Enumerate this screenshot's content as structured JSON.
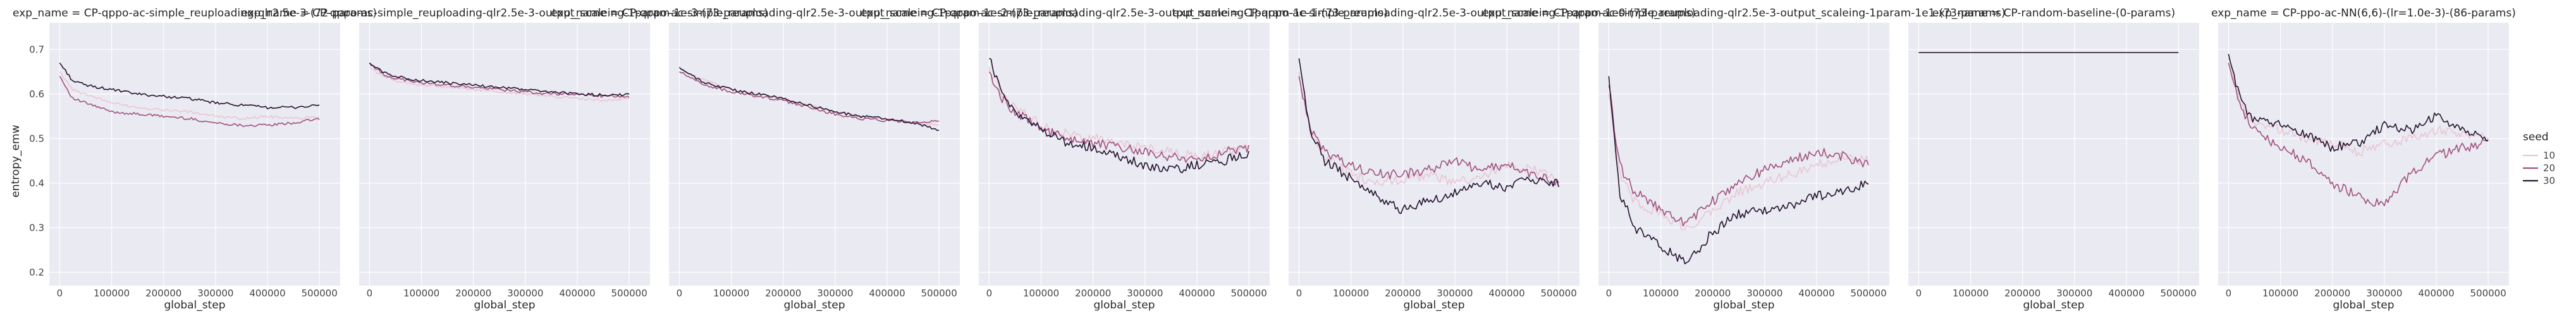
{
  "chart_data": {
    "type": "line",
    "facet_label": "exp_name",
    "xlabel": "global_step",
    "ylabel": "entropy_emw",
    "xlim": [
      -20000,
      540000
    ],
    "ylim": [
      0.17,
      0.76
    ],
    "xticks": [
      0,
      100000,
      200000,
      300000,
      400000,
      500000
    ],
    "yticks": [
      0.2,
      0.3,
      0.4,
      0.5,
      0.6,
      0.7
    ],
    "grid": true,
    "legend": {
      "title": "seed",
      "placement": "right",
      "entries": [
        "10",
        "20",
        "30"
      ]
    },
    "series_colors": {
      "10": "#e8c6d3",
      "20": "#a0517f",
      "30": "#23122e"
    },
    "panels": [
      {
        "title": "exp_name = CP-qppo-ac-simple_reuploading-qlr2.5e-3-(72-params)",
        "series": [
          {
            "name": "10",
            "x": [
              0,
              25000,
              50000,
              100000,
              150000,
              200000,
              250000,
              300000,
              350000,
              400000,
              450000,
              500000
            ],
            "y": [
              0.65,
              0.61,
              0.6,
              0.58,
              0.57,
              0.565,
              0.56,
              0.55,
              0.545,
              0.55,
              0.545,
              0.55
            ]
          },
          {
            "name": "20",
            "x": [
              0,
              25000,
              50000,
              100000,
              150000,
              200000,
              250000,
              300000,
              350000,
              400000,
              450000,
              500000
            ],
            "y": [
              0.64,
              0.59,
              0.58,
              0.56,
              0.555,
              0.55,
              0.545,
              0.535,
              0.53,
              0.53,
              0.535,
              0.545
            ]
          },
          {
            "name": "30",
            "x": [
              0,
              25000,
              50000,
              100000,
              150000,
              200000,
              250000,
              300000,
              350000,
              400000,
              450000,
              500000
            ],
            "y": [
              0.67,
              0.63,
              0.62,
              0.61,
              0.6,
              0.595,
              0.59,
              0.58,
              0.575,
              0.57,
              0.57,
              0.575
            ]
          }
        ]
      },
      {
        "title": "exp_name = CP-qppo-ac-simple_reuploading-qlr2.5e-3-output_scaleing-1param-1e-3-(73-params)",
        "series": [
          {
            "name": "10",
            "x": [
              0,
              25000,
              50000,
              100000,
              150000,
              200000,
              250000,
              300000,
              350000,
              400000,
              450000,
              500000
            ],
            "y": [
              0.66,
              0.64,
              0.63,
              0.62,
              0.615,
              0.61,
              0.605,
              0.6,
              0.595,
              0.59,
              0.585,
              0.59
            ]
          },
          {
            "name": "20",
            "x": [
              0,
              25000,
              50000,
              100000,
              150000,
              200000,
              250000,
              300000,
              350000,
              400000,
              450000,
              500000
            ],
            "y": [
              0.67,
              0.645,
              0.635,
              0.625,
              0.62,
              0.615,
              0.61,
              0.605,
              0.6,
              0.6,
              0.595,
              0.595
            ]
          },
          {
            "name": "30",
            "x": [
              0,
              25000,
              50000,
              100000,
              150000,
              200000,
              250000,
              300000,
              350000,
              400000,
              450000,
              500000
            ],
            "y": [
              0.67,
              0.65,
              0.64,
              0.63,
              0.625,
              0.62,
              0.615,
              0.61,
              0.605,
              0.6,
              0.598,
              0.598
            ]
          }
        ]
      },
      {
        "title": "exp_name = CP-qppo-ac-simple_reuploading-qlr2.5e-3-output_scaleing-1param-1e-2-(73-params)",
        "series": [
          {
            "name": "10",
            "x": [
              0,
              25000,
              50000,
              100000,
              150000,
              200000,
              250000,
              300000,
              350000,
              400000,
              450000,
              500000
            ],
            "y": [
              0.66,
              0.64,
              0.63,
              0.61,
              0.6,
              0.59,
              0.575,
              0.56,
              0.55,
              0.545,
              0.535,
              0.53
            ]
          },
          {
            "name": "20",
            "x": [
              0,
              25000,
              50000,
              100000,
              150000,
              200000,
              250000,
              300000,
              350000,
              400000,
              450000,
              500000
            ],
            "y": [
              0.65,
              0.635,
              0.62,
              0.605,
              0.595,
              0.585,
              0.57,
              0.555,
              0.545,
              0.54,
              0.535,
              0.54
            ]
          },
          {
            "name": "30",
            "x": [
              0,
              25000,
              50000,
              100000,
              150000,
              200000,
              250000,
              300000,
              350000,
              400000,
              450000,
              500000
            ],
            "y": [
              0.66,
              0.64,
              0.625,
              0.61,
              0.6,
              0.59,
              0.575,
              0.56,
              0.55,
              0.545,
              0.535,
              0.52
            ]
          }
        ]
      },
      {
        "title": "exp_name = CP-qppo-ac-simple_reuploading-qlr2.5e-3-output_scaleing-1param-1e-1-(73-params)",
        "series": [
          {
            "name": "10",
            "x": [
              0,
              25000,
              50000,
              100000,
              150000,
              200000,
              250000,
              300000,
              350000,
              400000,
              450000,
              500000
            ],
            "y": [
              0.66,
              0.6,
              0.57,
              0.53,
              0.51,
              0.5,
              0.49,
              0.48,
              0.47,
              0.46,
              0.47,
              0.48
            ]
          },
          {
            "name": "20",
            "x": [
              0,
              25000,
              50000,
              100000,
              150000,
              200000,
              250000,
              300000,
              350000,
              400000,
              450000,
              500000
            ],
            "y": [
              0.65,
              0.59,
              0.56,
              0.52,
              0.5,
              0.49,
              0.48,
              0.47,
              0.46,
              0.45,
              0.47,
              0.48
            ]
          },
          {
            "name": "30",
            "x": [
              0,
              25000,
              50000,
              100000,
              150000,
              200000,
              250000,
              300000,
              350000,
              400000,
              450000,
              500000
            ],
            "y": [
              0.68,
              0.6,
              0.56,
              0.52,
              0.49,
              0.48,
              0.46,
              0.44,
              0.43,
              0.44,
              0.45,
              0.47
            ]
          }
        ]
      },
      {
        "title": "exp_name = CP-qppo-ac-simple_reuploading-qlr2.5e-3-output_scaleing-1param-1e0-(73-params)",
        "series": [
          {
            "name": "10",
            "x": [
              0,
              20000,
              50000,
              100000,
              150000,
              200000,
              250000,
              300000,
              350000,
              400000,
              450000,
              500000
            ],
            "y": [
              0.65,
              0.52,
              0.46,
              0.42,
              0.4,
              0.41,
              0.42,
              0.4,
              0.41,
              0.44,
              0.43,
              0.41
            ]
          },
          {
            "name": "20",
            "x": [
              0,
              20000,
              50000,
              100000,
              150000,
              200000,
              250000,
              300000,
              350000,
              400000,
              450000,
              500000
            ],
            "y": [
              0.64,
              0.53,
              0.47,
              0.44,
              0.42,
              0.42,
              0.43,
              0.45,
              0.43,
              0.44,
              0.42,
              0.4
            ]
          },
          {
            "name": "30",
            "x": [
              0,
              20000,
              50000,
              100000,
              150000,
              200000,
              250000,
              300000,
              350000,
              400000,
              450000,
              500000
            ],
            "y": [
              0.68,
              0.52,
              0.45,
              0.41,
              0.37,
              0.34,
              0.36,
              0.38,
              0.4,
              0.39,
              0.41,
              0.4
            ]
          }
        ]
      },
      {
        "title": "exp_name = CP-qppo-ac-simple_reuploading-qlr2.5e-3-output_scaleing-1param-1e1-(73-params)",
        "series": [
          {
            "name": "10",
            "x": [
              0,
              20000,
              50000,
              100000,
              150000,
              200000,
              250000,
              300000,
              350000,
              400000,
              450000,
              500000
            ],
            "y": [
              0.6,
              0.42,
              0.36,
              0.33,
              0.3,
              0.34,
              0.38,
              0.4,
              0.42,
              0.44,
              0.46,
              0.45
            ]
          },
          {
            "name": "20",
            "x": [
              0,
              20000,
              50000,
              100000,
              150000,
              200000,
              250000,
              300000,
              350000,
              400000,
              450000,
              500000
            ],
            "y": [
              0.62,
              0.44,
              0.38,
              0.34,
              0.31,
              0.36,
              0.4,
              0.43,
              0.45,
              0.47,
              0.46,
              0.44
            ]
          },
          {
            "name": "30",
            "x": [
              0,
              20000,
              50000,
              100000,
              150000,
              200000,
              250000,
              300000,
              350000,
              400000,
              450000,
              500000
            ],
            "y": [
              0.64,
              0.38,
              0.3,
              0.26,
              0.22,
              0.29,
              0.33,
              0.34,
              0.35,
              0.37,
              0.38,
              0.4
            ]
          }
        ]
      },
      {
        "title": "exp_name = CP-random-baseline-(0-params)",
        "series": [
          {
            "name": "10",
            "x": [
              0,
              500000
            ],
            "y": [
              0.693,
              0.693
            ]
          },
          {
            "name": "20",
            "x": [
              0,
              500000
            ],
            "y": [
              0.693,
              0.693
            ]
          },
          {
            "name": "30",
            "x": [
              0,
              500000
            ],
            "y": [
              0.693,
              0.693
            ]
          }
        ]
      },
      {
        "title": "exp_name = CP-ppo-ac-NN(6,6)-(lr=1.0e-3)-(86-params)",
        "series": [
          {
            "name": "10",
            "x": [
              0,
              25000,
              50000,
              100000,
              150000,
              200000,
              250000,
              300000,
              350000,
              400000,
              450000,
              500000
            ],
            "y": [
              0.68,
              0.57,
              0.54,
              0.52,
              0.5,
              0.49,
              0.47,
              0.49,
              0.5,
              0.52,
              0.51,
              0.5
            ]
          },
          {
            "name": "20",
            "x": [
              0,
              25000,
              50000,
              100000,
              150000,
              200000,
              250000,
              300000,
              350000,
              400000,
              450000,
              500000
            ],
            "y": [
              0.67,
              0.56,
              0.52,
              0.48,
              0.45,
              0.4,
              0.37,
              0.35,
              0.42,
              0.46,
              0.48,
              0.49
            ]
          },
          {
            "name": "30",
            "x": [
              0,
              25000,
              50000,
              100000,
              150000,
              200000,
              250000,
              300000,
              350000,
              400000,
              450000,
              500000
            ],
            "y": [
              0.69,
              0.58,
              0.54,
              0.53,
              0.51,
              0.48,
              0.49,
              0.53,
              0.52,
              0.55,
              0.52,
              0.5
            ]
          }
        ]
      }
    ]
  }
}
